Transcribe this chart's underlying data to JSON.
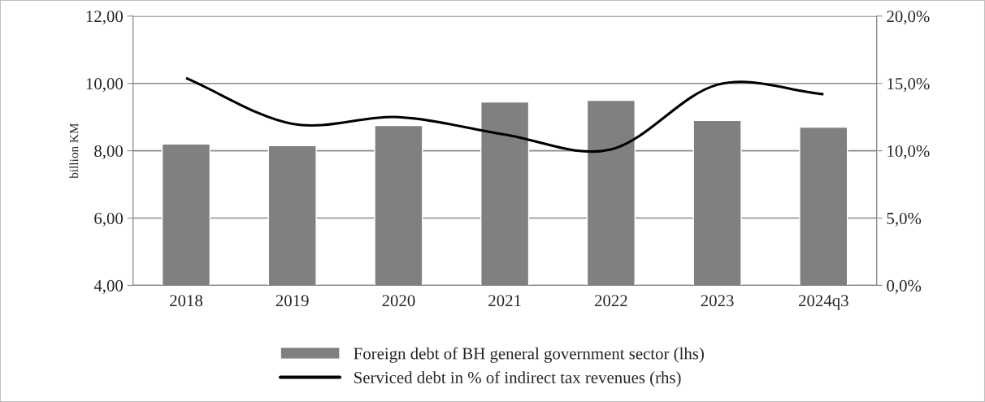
{
  "chart_data": {
    "type": "bar",
    "categories": [
      "2018",
      "2019",
      "2020",
      "2021",
      "2022",
      "2023",
      "2024q3"
    ],
    "ylabel": "billion KM",
    "series": [
      {
        "name": "Foreign debt of BH general government sector (lhs)",
        "color": "#808080",
        "values": [
          8.2,
          8.15,
          8.75,
          9.45,
          9.5,
          8.9,
          8.7
        ]
      },
      {
        "name": "Serviced debt in % of indirect tax revenues (rhs)",
        "type": "line",
        "axis": "y2",
        "color": "#000000",
        "values": [
          15.4,
          12.0,
          12.5,
          11.2,
          10.1,
          14.9,
          14.2
        ]
      }
    ],
    "ylim": [
      4,
      12
    ],
    "yticks": [
      {
        "value": 4,
        "label": "4,00"
      },
      {
        "value": 6,
        "label": "6,00"
      },
      {
        "value": 8,
        "label": "8,00"
      },
      {
        "value": 10,
        "label": "10,00"
      },
      {
        "value": 12,
        "label": "12,00"
      }
    ],
    "y2lim": [
      0,
      20
    ],
    "y2ticks": [
      {
        "value": 0,
        "label": "0,0%"
      },
      {
        "value": 5,
        "label": "5,0%"
      },
      {
        "value": 10,
        "label": "10,0%"
      },
      {
        "value": 15,
        "label": "15,0%"
      },
      {
        "value": 20,
        "label": "20,0%"
      }
    ],
    "grid": "y",
    "legend": "bottom",
    "marker": "none",
    "line_style": "solid"
  }
}
